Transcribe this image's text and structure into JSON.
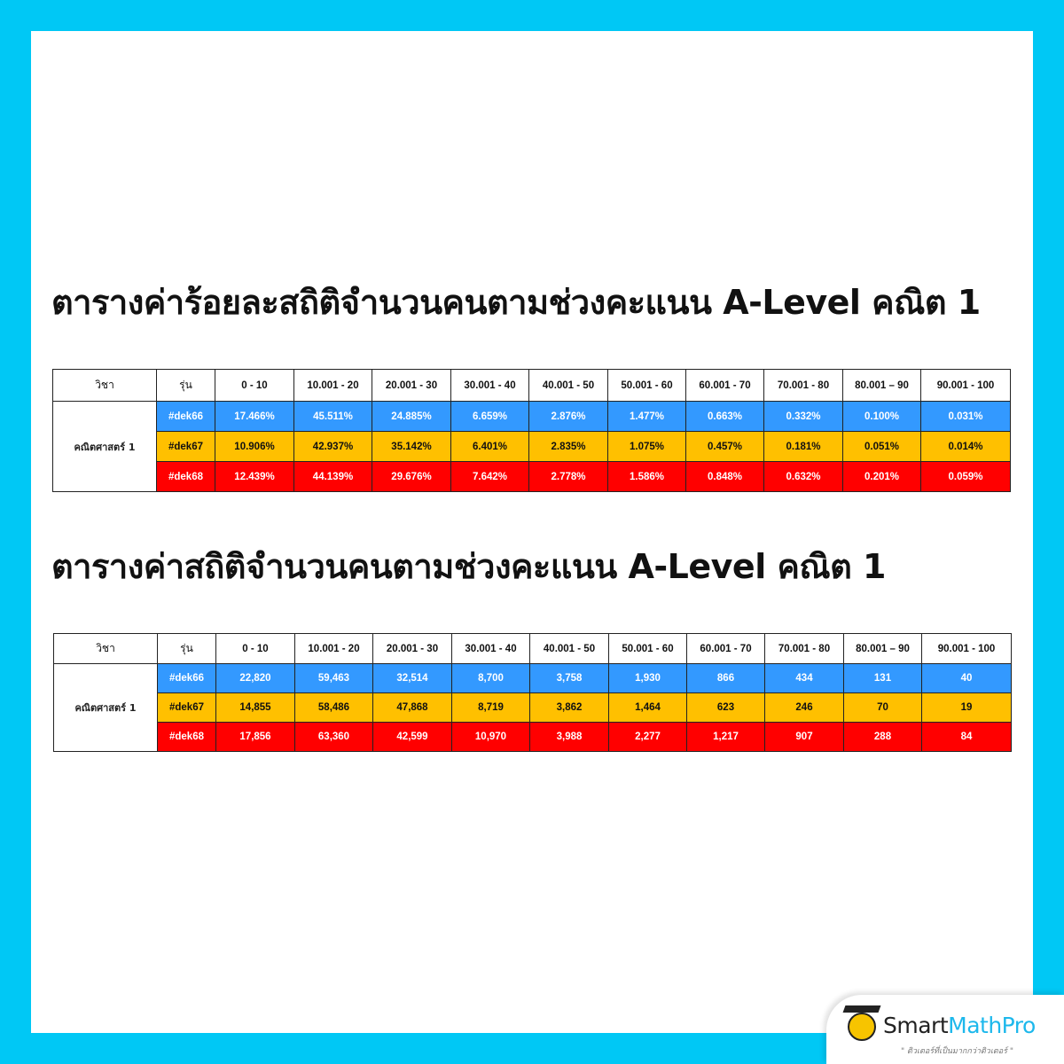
{
  "colors": {
    "frame": "#00c8f5",
    "dek66": "#3399ff",
    "dek67": "#ffc000",
    "dek68": "#ff0000"
  },
  "title1": "ตารางค่าร้อยละสถิติจำนวนคนตามช่วงคะแนน A-Level คณิต 1",
  "title2": "ตารางค่าสถิติจำนวนคนตามช่วงคะแนน A-Level คณิต 1",
  "headers": [
    "วิชา",
    "รุ่น",
    "0 - 10",
    "10.001 - 20",
    "20.001 - 30",
    "30.001 - 40",
    "40.001 - 50",
    "50.001 - 60",
    "60.001 - 70",
    "70.001 - 80",
    "80.001 – 90",
    "90.001 - 100"
  ],
  "subject": "คณิตศาสตร์ 1",
  "percent_table": {
    "rows": [
      {
        "label": "#dek66",
        "values": [
          "17.466%",
          "45.511%",
          "24.885%",
          "6.659%",
          "2.876%",
          "1.477%",
          "0.663%",
          "0.332%",
          "0.100%",
          "0.031%"
        ]
      },
      {
        "label": "#dek67",
        "values": [
          "10.906%",
          "42.937%",
          "35.142%",
          "6.401%",
          "2.835%",
          "1.075%",
          "0.457%",
          "0.181%",
          "0.051%",
          "0.014%"
        ]
      },
      {
        "label": "#dek68",
        "values": [
          "12.439%",
          "44.139%",
          "29.676%",
          "7.642%",
          "2.778%",
          "1.586%",
          "0.848%",
          "0.632%",
          "0.201%",
          "0.059%"
        ]
      }
    ]
  },
  "count_table": {
    "rows": [
      {
        "label": "#dek66",
        "values": [
          "22,820",
          "59,463",
          "32,514",
          "8,700",
          "3,758",
          "1,930",
          "866",
          "434",
          "131",
          "40"
        ]
      },
      {
        "label": "#dek67",
        "values": [
          "14,855",
          "58,486",
          "47,868",
          "8,719",
          "3,862",
          "1,464",
          "623",
          "246",
          "70",
          "19"
        ]
      },
      {
        "label": "#dek68",
        "values": [
          "17,856",
          "63,360",
          "42,599",
          "10,970",
          "3,988",
          "2,277",
          "1,217",
          "907",
          "288",
          "84"
        ]
      }
    ]
  },
  "logo": {
    "brand_dark": "Smart",
    "brand_blue": "MathPro",
    "tagline": "\" ติวเตอร์ที่เป็นมากกว่าติวเตอร์ \""
  }
}
